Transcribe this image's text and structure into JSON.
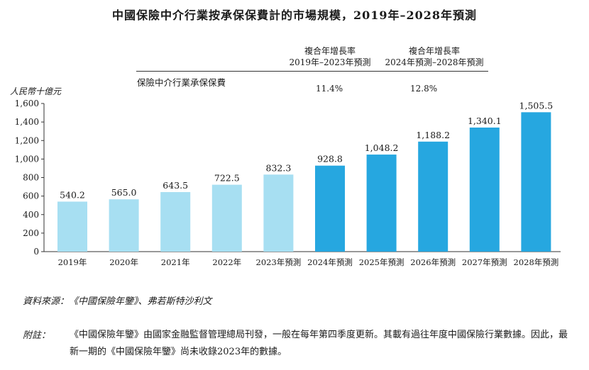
{
  "title": "中國保險中介行業按承保保費計的市場規模，2019年–2028年預測",
  "cagr": {
    "series_label": "保險中介行業承保保費",
    "periods": [
      {
        "heading_line1": "複合年增長率",
        "heading_line2": "2019年–2023年預測",
        "value": "11.4%"
      },
      {
        "heading_line1": "複合年增長率",
        "heading_line2": "2024年預測–2028年預測",
        "value": "12.8%"
      }
    ]
  },
  "chart_data": {
    "type": "bar",
    "ylabel": "人民幣十億元",
    "ylim": [
      0,
      1600
    ],
    "yticks": [
      0,
      200,
      400,
      600,
      800,
      "1,000",
      "1,200",
      "1,400",
      "1,600"
    ],
    "categories": [
      "2019年",
      "2020年",
      "2021年",
      "2022年",
      "2023年預測",
      "2024年預測",
      "2025年預測",
      "2026年預測",
      "2027年預測",
      "2028年預測"
    ],
    "values": [
      540.2,
      565.0,
      643.5,
      722.5,
      832.3,
      928.8,
      1048.2,
      1188.2,
      1340.1,
      1505.5
    ],
    "value_labels": [
      "540.2",
      "565.0",
      "643.5",
      "722.5",
      "832.3",
      "928.8",
      "1,048.2",
      "1,188.2",
      "1,340.1",
      "1,505.5"
    ],
    "colors": {
      "historical": "#a7dff2",
      "forecast": "#26a7e0"
    },
    "forecast_start_index": 5,
    "grid": false
  },
  "footer": {
    "source": "資料來源：《中國保險年鑒》、弗若斯特沙利文",
    "note_label": "附註：",
    "note_text": "《中國保險年鑒》由國家金融監督管理總局刊發，一般在每年第四季度更新。其載有過往年度中國保險行業數據。因此，最新一期的《中國保險年鑒》尚未收錄2023年的數據。"
  }
}
